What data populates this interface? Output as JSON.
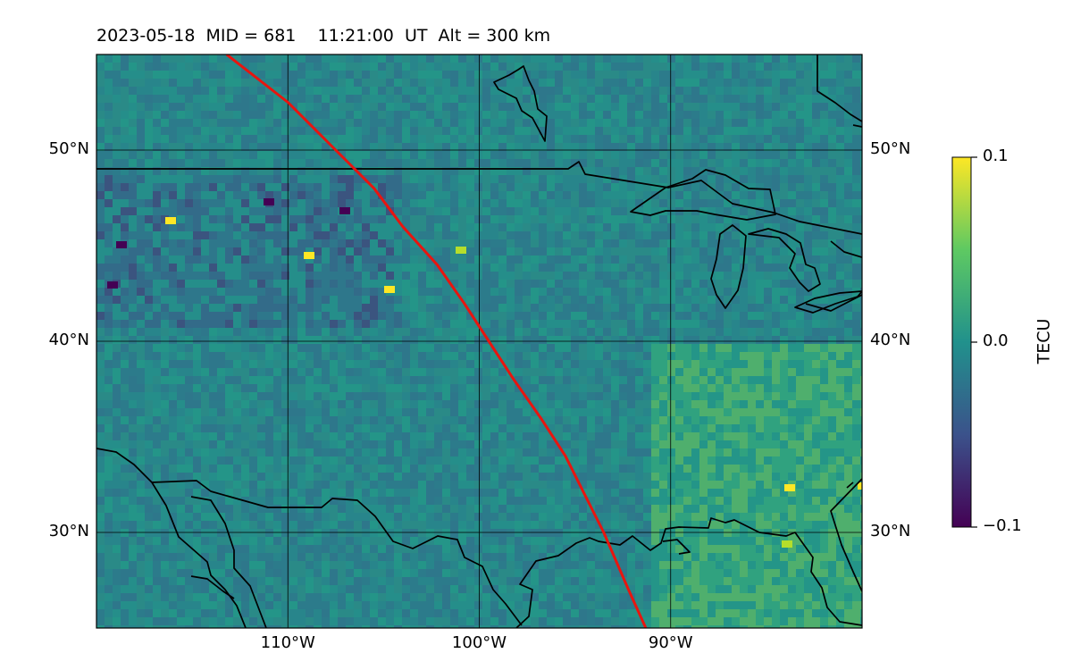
{
  "title": "2023-05-18  MID = 681    11:21:00  UT  Alt = 300 km",
  "map": {
    "lon_range": [
      -120,
      -80
    ],
    "lat_range": [
      25,
      55
    ],
    "lon_ticks": [
      {
        "value": -110,
        "label": "110°W"
      },
      {
        "value": -100,
        "label": "100°W"
      },
      {
        "value": -90,
        "label": "90°W"
      }
    ],
    "lat_ticks": [
      {
        "value": 50,
        "label": "50°N"
      },
      {
        "value": 40,
        "label": "40°N"
      },
      {
        "value": 30,
        "label": "30°N"
      }
    ],
    "gridlines": true,
    "colormap": "viridis",
    "track_color": "#e8150f",
    "track": [
      [
        -113.2,
        55
      ],
      [
        -110,
        52.5
      ],
      [
        -107.5,
        50
      ],
      [
        -105.5,
        48
      ],
      [
        -104,
        46
      ],
      [
        -102.2,
        44
      ],
      [
        -100.8,
        42
      ],
      [
        -99.5,
        40
      ],
      [
        -98.2,
        38
      ],
      [
        -96.8,
        36
      ],
      [
        -95.5,
        34
      ],
      [
        -94.5,
        32
      ],
      [
        -93.5,
        30
      ],
      [
        -92.2,
        27
      ],
      [
        -91.3,
        25
      ]
    ]
  },
  "colorbar": {
    "label": "TECU",
    "min": -0.1,
    "max": 0.1,
    "ticks": [
      {
        "value": 0.1,
        "label": "0.1"
      },
      {
        "value": 0.0,
        "label": "0.0"
      },
      {
        "value": -0.1,
        "label": "−0.1"
      }
    ]
  }
}
